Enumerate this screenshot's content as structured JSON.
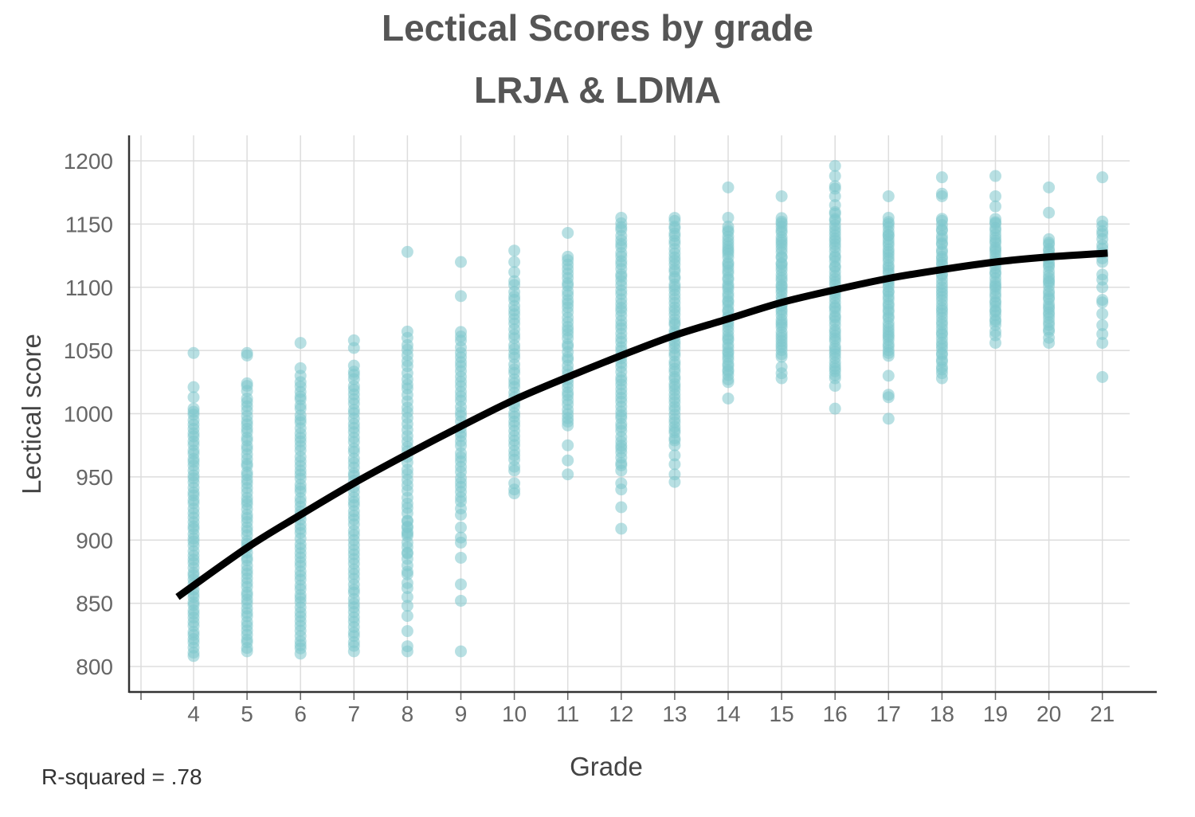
{
  "chart_data": {
    "type": "scatter",
    "title": "Lectical Scores by grade",
    "subtitle": "LRJA & LDMA",
    "xlabel": "Grade",
    "ylabel": "Lectical score",
    "annotation": "R-squared = .78",
    "xlim": [
      3.5,
      22
    ],
    "ylim": [
      790,
      1210
    ],
    "x_ticks": [
      4,
      5,
      6,
      7,
      8,
      9,
      10,
      11,
      12,
      13,
      14,
      15,
      16,
      17,
      18,
      19,
      20,
      21
    ],
    "y_ticks": [
      800,
      850,
      900,
      950,
      1000,
      1050,
      1100,
      1150,
      1200
    ],
    "grid": true,
    "point_color": "#7ec6cc",
    "curve_color": "#000000",
    "groups": [
      {
        "grade": 4,
        "bands": [
          [
            808,
            1005,
            60
          ]
        ],
        "points": [
          1021,
          1013,
          1048
        ]
      },
      {
        "grade": 5,
        "bands": [
          [
            812,
            1012,
            60
          ]
        ],
        "points": [
          1018,
          1022,
          1024,
          1046,
          1048
        ]
      },
      {
        "grade": 6,
        "bands": [
          [
            810,
            1025,
            60
          ]
        ],
        "points": [
          1030,
          1036,
          1056
        ]
      },
      {
        "grade": 7,
        "bands": [
          [
            812,
            1038,
            60
          ]
        ],
        "points": [
          1052,
          1058
        ]
      },
      {
        "grade": 8,
        "bands": [
          [
            880,
            1055,
            40
          ]
        ],
        "points": [
          812,
          816,
          828,
          840,
          848,
          855,
          862,
          866,
          873,
          875,
          890,
          905,
          910,
          915,
          1060,
          1065,
          1128
        ]
      },
      {
        "grade": 9,
        "bands": [
          [
            930,
            1065,
            35
          ]
        ],
        "points": [
          812,
          852,
          865,
          886,
          898,
          902,
          910,
          920,
          925,
          1093,
          1120
        ]
      },
      {
        "grade": 10,
        "bands": [
          [
            955,
            1105,
            40
          ]
        ],
        "points": [
          937,
          940,
          945,
          1112,
          1120,
          1129
        ]
      },
      {
        "grade": 11,
        "bands": [
          [
            990,
            1125,
            40
          ]
        ],
        "points": [
          952,
          963,
          975,
          1143
        ]
      },
      {
        "grade": 12,
        "bands": [
          [
            955,
            1155,
            60
          ]
        ],
        "points": [
          909,
          926,
          940,
          945
        ]
      },
      {
        "grade": 13,
        "bands": [
          [
            975,
            1155,
            60
          ]
        ],
        "points": [
          946,
          952,
          960,
          967
        ]
      },
      {
        "grade": 14,
        "bands": [
          [
            1025,
            1148,
            50
          ]
        ],
        "points": [
          1012,
          1155,
          1179
        ]
      },
      {
        "grade": 15,
        "bands": [
          [
            1045,
            1155,
            45
          ]
        ],
        "points": [
          1028,
          1032,
          1037,
          1172
        ]
      },
      {
        "grade": 16,
        "bands": [
          [
            1030,
            1160,
            50
          ]
        ],
        "points": [
          1004,
          1022,
          1028,
          1165,
          1172,
          1178,
          1180,
          1196,
          1188
        ]
      },
      {
        "grade": 17,
        "bands": [
          [
            1045,
            1155,
            45
          ]
        ],
        "points": [
          996,
          1013,
          1015,
          1030,
          1172
        ]
      },
      {
        "grade": 18,
        "bands": [
          [
            1035,
            1155,
            45
          ]
        ],
        "points": [
          1028,
          1032,
          1172,
          1174,
          1187
        ]
      },
      {
        "grade": 19,
        "bands": [
          [
            1070,
            1155,
            35
          ]
        ],
        "points": [
          1056,
          1062,
          1065,
          1164,
          1172,
          1188
        ]
      },
      {
        "grade": 20,
        "bands": [
          [
            1065,
            1138,
            30
          ]
        ],
        "points": [
          1056,
          1060,
          1159,
          1179
        ]
      },
      {
        "grade": 21,
        "bands": [
          [
            1120,
            1152,
            10
          ]
        ],
        "points": [
          1029,
          1056,
          1063,
          1070,
          1079,
          1088,
          1090,
          1100,
          1106,
          1110,
          1187
        ]
      }
    ],
    "fit_curve": {
      "x": [
        3.7,
        5,
        6,
        7,
        8,
        9,
        10,
        11,
        12,
        13,
        14,
        15,
        16,
        17,
        18,
        19,
        20,
        21.1
      ],
      "y": [
        855,
        894,
        920,
        945,
        968,
        990,
        1011,
        1029,
        1046,
        1062,
        1075,
        1088,
        1098,
        1107,
        1114,
        1120,
        1124,
        1127
      ]
    }
  }
}
